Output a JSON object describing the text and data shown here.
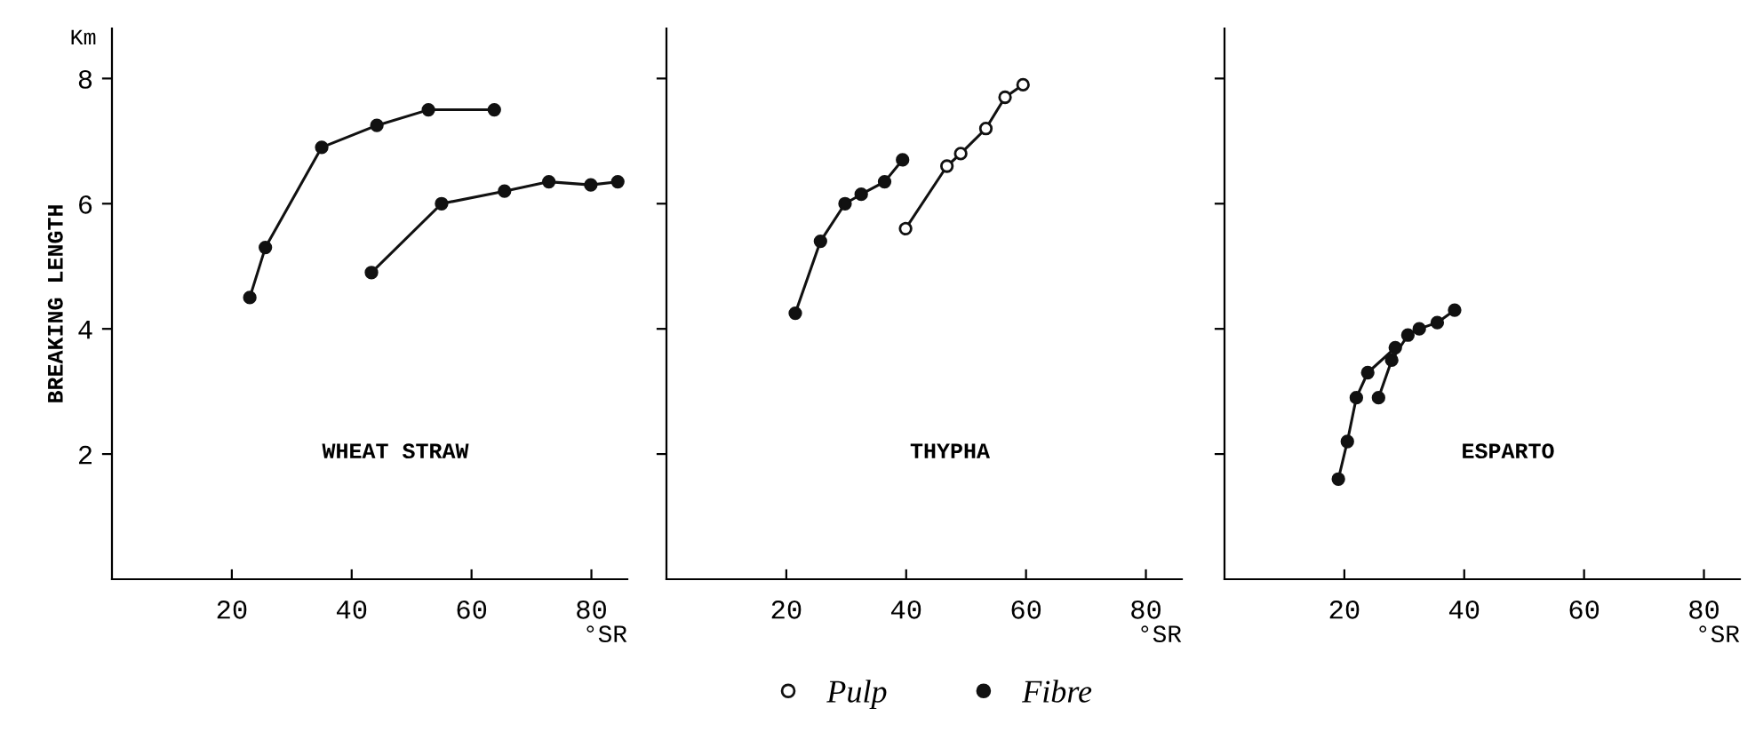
{
  "chart_data": [
    {
      "type": "line",
      "ylabel": "BREAKING LENGTH",
      "xlabel": "°SR",
      "annotations": [
        "Km",
        "WHEAT STRAW"
      ],
      "xlim": [
        0,
        86
      ],
      "xticks": [
        20,
        40,
        60,
        80
      ],
      "ylim": [
        0,
        8.8
      ],
      "yticks": [
        2,
        4,
        6,
        8
      ],
      "grid": false,
      "legend": false,
      "marker": "circle",
      "line_style": "solid",
      "series": [
        {
          "color": "#111111",
          "x": [
            23.0,
            25.6,
            35.0,
            44.2,
            52.8,
            63.8
          ],
          "values": [
            4.5,
            5.3,
            6.9,
            7.25,
            7.5,
            7.5
          ]
        },
        {
          "color": "#111111",
          "x": [
            43.3,
            55.0,
            65.5,
            72.9,
            79.9,
            84.4
          ],
          "values": [
            4.9,
            6.0,
            6.2,
            6.35,
            6.3,
            6.35
          ]
        }
      ]
    },
    {
      "type": "line",
      "xlabel": "°SR",
      "annotations": [
        "THYPHA"
      ],
      "xlim": [
        0,
        86
      ],
      "xticks": [
        20,
        40,
        60,
        80
      ],
      "ylim": [
        0,
        8.8
      ],
      "yticks": [
        2,
        4,
        6,
        8
      ],
      "tick_labels": "x",
      "grid": false,
      "legend": "bottom",
      "marker": "circle",
      "line_style": "solid",
      "series": [
        {
          "name": "Fibre",
          "color": "#111111",
          "x": [
            21.5,
            25.7,
            29.8,
            32.5,
            36.4,
            39.4
          ],
          "values": [
            4.25,
            5.4,
            6.0,
            6.15,
            6.35,
            6.7
          ]
        },
        {
          "name": "Pulp",
          "color": "#ffffff",
          "x": [
            39.9,
            46.8,
            49.1,
            53.3,
            56.5,
            59.5
          ],
          "values": [
            5.6,
            6.6,
            6.8,
            7.2,
            7.7,
            7.9
          ]
        }
      ]
    },
    {
      "type": "line",
      "xlabel": "°SR",
      "annotations": [
        "ESPARTO"
      ],
      "xlim": [
        0,
        86
      ],
      "xticks": [
        20,
        40,
        60,
        80
      ],
      "ylim": [
        0,
        8.8
      ],
      "yticks": [
        2,
        4,
        6,
        8
      ],
      "tick_labels": "x",
      "grid": false,
      "legend": false,
      "marker": "circle",
      "line_style": "solid",
      "series": [
        {
          "color": "#111111",
          "x": [
            19.0,
            20.5,
            22.0,
            23.9,
            28.5
          ],
          "values": [
            1.6,
            2.2,
            2.9,
            3.3,
            3.7
          ]
        },
        {
          "color": "#111111",
          "x": [
            25.7,
            27.9,
            30.6,
            32.5,
            35.5,
            38.4
          ],
          "values": [
            2.9,
            3.5,
            3.9,
            4.0,
            4.1,
            4.3
          ]
        }
      ]
    }
  ]
}
